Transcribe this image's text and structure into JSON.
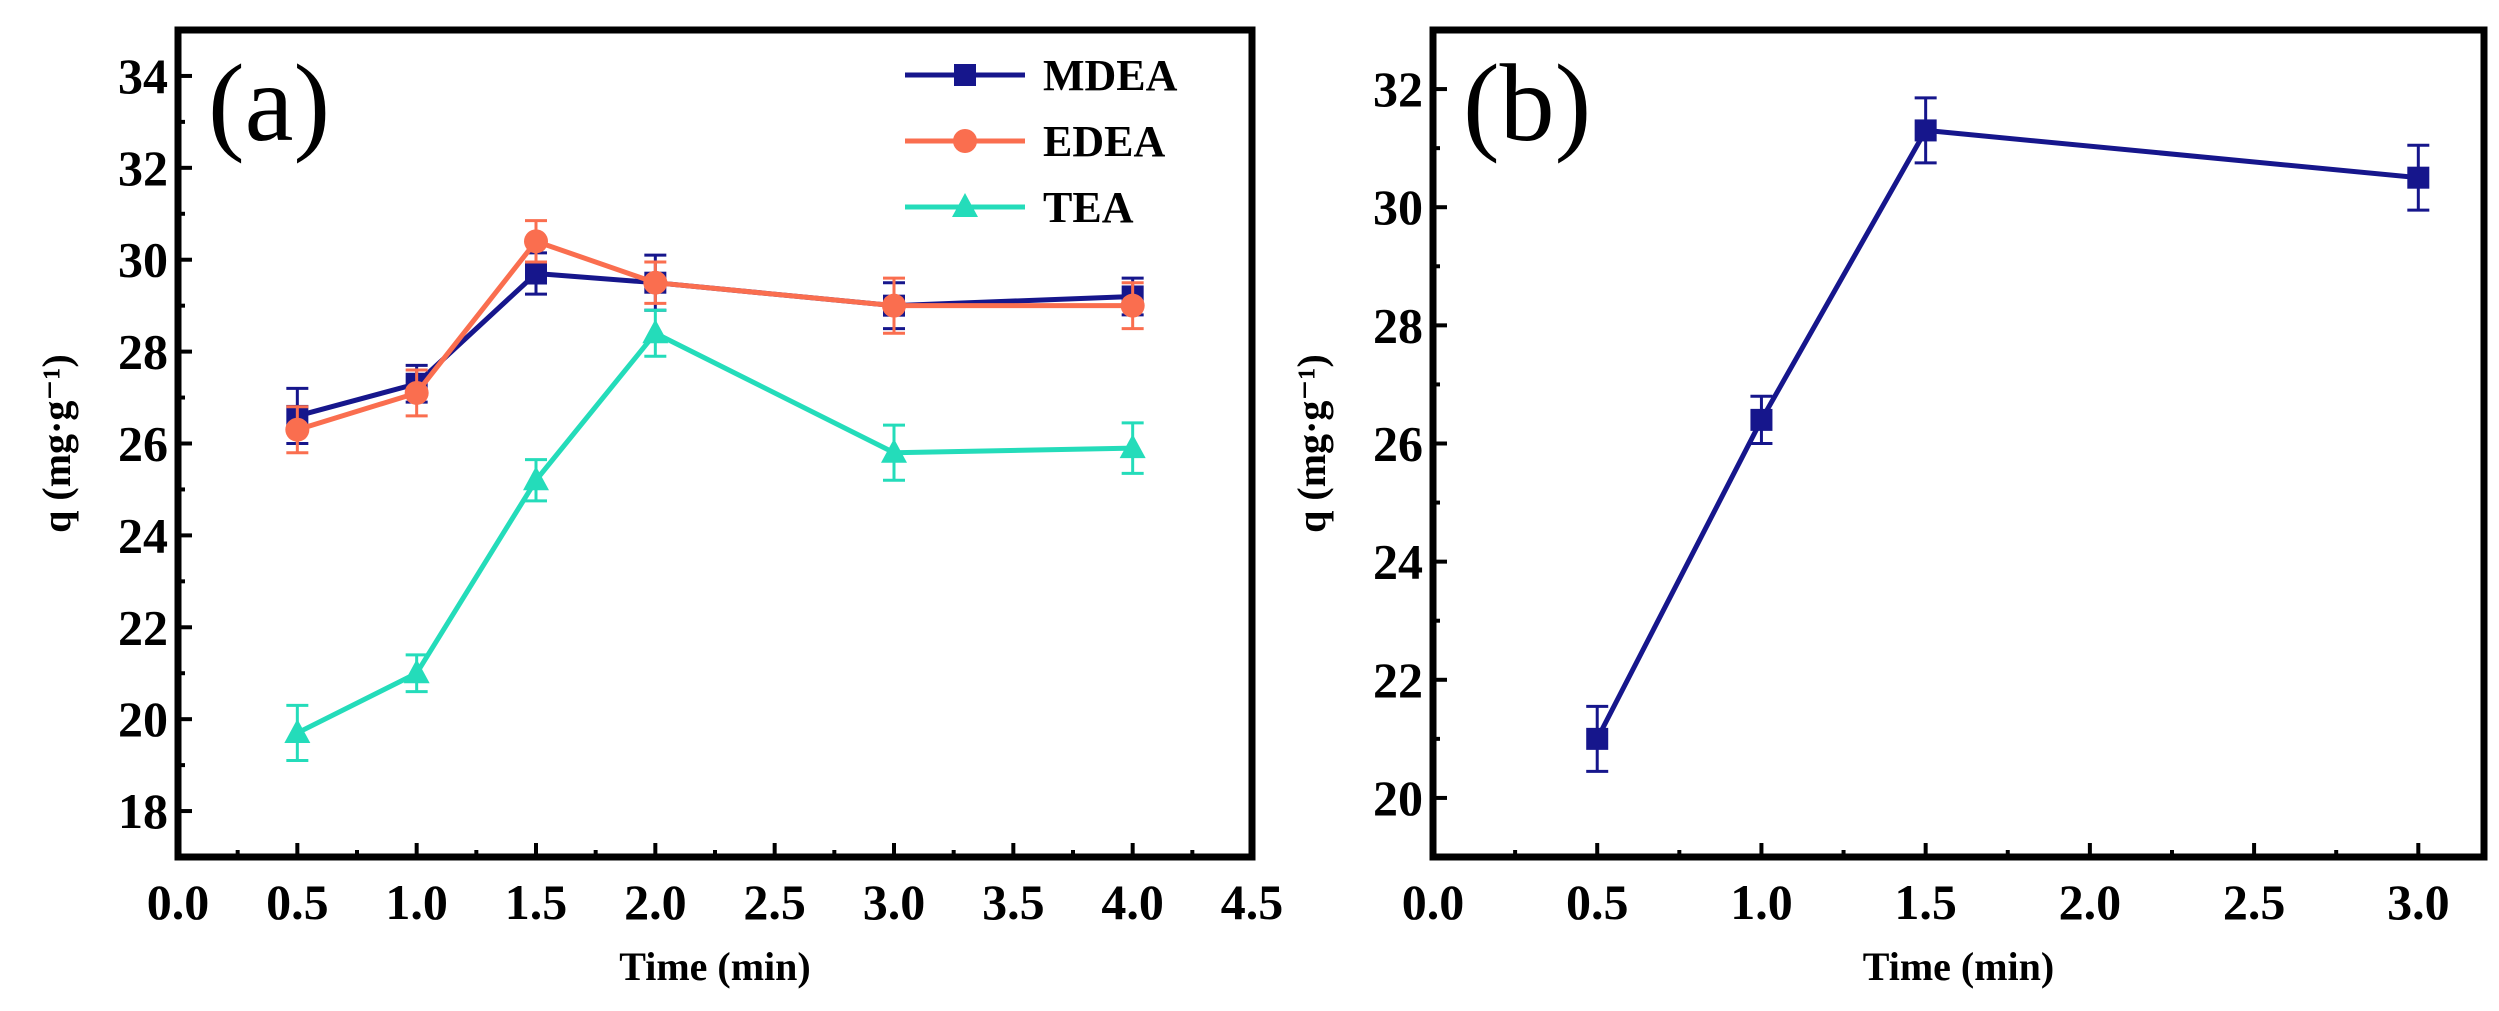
{
  "chart_data": [
    {
      "type": "line",
      "panel_label": "(a)",
      "xlabel": "Time (min)",
      "ylabel": "q (mg·g⁻¹)",
      "xlim": [
        0,
        4.5
      ],
      "ylim": [
        17,
        35
      ],
      "xticks": [
        "0.0",
        "0.5",
        "1.0",
        "1.5",
        "2.0",
        "2.5",
        "3.0",
        "3.5",
        "4.0",
        "4.5"
      ],
      "yticks": [
        "18",
        "20",
        "22",
        "24",
        "26",
        "28",
        "30",
        "32",
        "34"
      ],
      "grid": false,
      "legend_position": "top-right",
      "x": [
        0.5,
        1.0,
        1.5,
        2.0,
        3.0,
        4.0
      ],
      "series": [
        {
          "name": "MDEA",
          "color": "#16168c",
          "marker": "square",
          "values": [
            26.6,
            27.3,
            29.7,
            29.5,
            29.0,
            29.2
          ],
          "errors": [
            0.6,
            0.4,
            0.45,
            0.6,
            0.5,
            0.4
          ]
        },
        {
          "name": "EDEA",
          "color": "#fa6e4f",
          "marker": "circle",
          "values": [
            26.3,
            27.1,
            30.4,
            29.5,
            29.0,
            29.0
          ],
          "errors": [
            0.5,
            0.5,
            0.45,
            0.45,
            0.6,
            0.5
          ]
        },
        {
          "name": "TEA",
          "color": "#24dcba",
          "marker": "triangle",
          "values": [
            19.7,
            21.0,
            25.2,
            28.4,
            25.8,
            25.9
          ],
          "errors": [
            0.6,
            0.4,
            0.45,
            0.5,
            0.6,
            0.55
          ]
        }
      ]
    },
    {
      "type": "line",
      "panel_label": "(b)",
      "xlabel": "Time (min)",
      "ylabel": "q (mg·g⁻¹)",
      "xlim": [
        0,
        3.2
      ],
      "ylim": [
        19,
        33
      ],
      "xticks": [
        "0.0",
        "0.5",
        "1.0",
        "1.5",
        "2.0",
        "2.5",
        "3.0"
      ],
      "yticks": [
        "20",
        "22",
        "24",
        "26",
        "28",
        "30",
        "32"
      ],
      "grid": false,
      "x": [
        0.5,
        1.0,
        1.5,
        3.0
      ],
      "series": [
        {
          "name": "",
          "color": "#16168c",
          "marker": "square",
          "values": [
            21.0,
            26.4,
            31.3,
            30.5
          ],
          "errors": [
            0.55,
            0.4,
            0.55,
            0.55
          ]
        }
      ]
    }
  ]
}
